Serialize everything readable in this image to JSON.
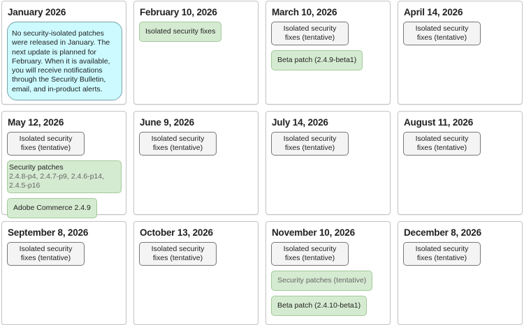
{
  "colors": {
    "tentative": "#f4f4f4",
    "confirmed": "#d5ebd1",
    "note": "#ccfaff"
  },
  "months": [
    {
      "title": "January 2026",
      "note": "No security-isolated patches were released in January. The next update is planned for February. When it is available, you will receive notifications through the Security Bulletin, email, and in-product alerts.",
      "items": []
    },
    {
      "title": "February 10, 2026",
      "items": [
        {
          "type": "green",
          "label": "Isolated security fixes"
        }
      ]
    },
    {
      "title": "March 10, 2026",
      "items": [
        {
          "type": "gray",
          "label": "Isolated security fixes (tentative)"
        },
        {
          "type": "green",
          "label": "Beta patch (2.4.9-beta1)"
        }
      ]
    },
    {
      "title": "April 14, 2026",
      "items": [
        {
          "type": "gray",
          "label": "Isolated security fixes (tentative)"
        }
      ]
    },
    {
      "title": "May 12, 2026",
      "items": [
        {
          "type": "gray",
          "label": "Isolated security fixes (tentative)"
        },
        {
          "type": "sub",
          "label": "Security patches",
          "sublabel": "2.4.8-p4, 2.4.7-p9, 2.4.6-p14, 2.4.5-p16"
        },
        {
          "type": "green",
          "label": "Adobe Commerce 2.4.9"
        }
      ]
    },
    {
      "title": "June 9, 2026",
      "items": [
        {
          "type": "gray",
          "label": "Isolated security fixes (tentative)"
        }
      ]
    },
    {
      "title": "July 14, 2026",
      "items": [
        {
          "type": "gray",
          "label": "Isolated security fixes (tentative)"
        }
      ]
    },
    {
      "title": "August 11, 2026",
      "items": [
        {
          "type": "gray",
          "label": "Isolated security fixes (tentative)"
        }
      ]
    },
    {
      "title": "September 8, 2026",
      "items": [
        {
          "type": "gray",
          "label": "Isolated security fixes (tentative)"
        }
      ]
    },
    {
      "title": "October 13, 2026",
      "items": [
        {
          "type": "gray",
          "label": "Isolated security fixes (tentative)"
        }
      ]
    },
    {
      "title": "November 10, 2026",
      "items": [
        {
          "type": "gray",
          "label": "Isolated security fixes (tentative)"
        },
        {
          "type": "muted",
          "label": "Security patches (tentative)"
        },
        {
          "type": "green",
          "label": "Beta patch (2.4.10-beta1)"
        }
      ]
    },
    {
      "title": "December 8, 2026",
      "items": [
        {
          "type": "gray",
          "label": "Isolated security fixes (tentative)"
        }
      ]
    }
  ]
}
